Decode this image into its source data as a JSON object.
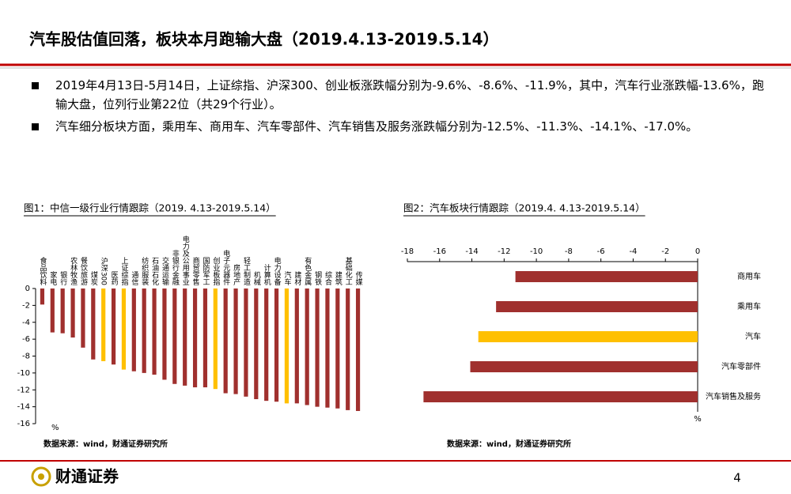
{
  "header": {
    "title": "汽车股估值回落，板块本月跑输大盘（2019.4.13-2019.5.14）"
  },
  "bullets": [
    "2019年4月13日-5月14日，上证综指、沪深300、创业板涨跌幅分别为-9.6%、-8.6%、-11.9%，其中，汽车行业涨跌幅-13.6%，跑输大盘，位列行业第22位（共29个行业）。",
    "汽车细分板块方面，乘用车、商用车、汽车零部件、汽车销售及服务涨跌幅分别为-12.5%、-11.3%、-14.1%、-17.0%。"
  ],
  "chart_data": [
    {
      "type": "bar",
      "title": "图1：中信一级行业行情跟踪（2019. 4.13-2019.5.14）",
      "categories": [
        "食品饮料",
        "家电",
        "银行",
        "农林牧渔",
        "餐饮旅游",
        "煤炭",
        "沪深300",
        "医药",
        "上证综指",
        "通信",
        "纺织服装",
        "石油石化",
        "交通运输",
        "非银行金融",
        "电力及公用事业",
        "商贸零售",
        "国防军工",
        "创业板指",
        "电子元器件",
        "房地产",
        "轻工制造",
        "机械",
        "计算机",
        "电力设备",
        "汽车",
        "建材",
        "有色金属",
        "钢铁",
        "综合",
        "建筑",
        "基础化工",
        "传媒"
      ],
      "values": [
        -1.9,
        -5.2,
        -5.3,
        -5.8,
        -7.0,
        -8.4,
        -8.6,
        -9.0,
        -9.6,
        -9.8,
        -10.0,
        -10.2,
        -10.8,
        -11.3,
        -11.5,
        -11.7,
        -11.7,
        -11.9,
        -12.4,
        -12.5,
        -12.8,
        -13.1,
        -13.3,
        -13.4,
        -13.6,
        -13.6,
        -13.8,
        -14.0,
        -14.1,
        -14.2,
        -14.4,
        -14.5
      ],
      "colors": [
        "#a0302e",
        "#a0302e",
        "#a0302e",
        "#a0302e",
        "#a0302e",
        "#a0302e",
        "#ffc000",
        "#a0302e",
        "#ffc000",
        "#a0302e",
        "#a0302e",
        "#a0302e",
        "#a0302e",
        "#a0302e",
        "#a0302e",
        "#a0302e",
        "#a0302e",
        "#ffc000",
        "#a0302e",
        "#a0302e",
        "#a0302e",
        "#a0302e",
        "#a0302e",
        "#a0302e",
        "#ffc000",
        "#a0302e",
        "#a0302e",
        "#a0302e",
        "#a0302e",
        "#a0302e",
        "#a0302e",
        "#a0302e"
      ],
      "ylim": [
        -16,
        0
      ],
      "yticks": [
        0,
        -2,
        -4,
        -6,
        -8,
        -10,
        -12,
        -14,
        -16
      ],
      "unit": "%",
      "source": "数据来源：wind，财通证券研究所"
    },
    {
      "type": "barh",
      "title": "图2：汽车板块行情跟踪（2019.4. 4.13-2019.5.14）",
      "categories": [
        "商用车",
        "乘用车",
        "汽车",
        "汽车零部件",
        "汽车销售及服务"
      ],
      "values": [
        -11.3,
        -12.5,
        -13.6,
        -14.1,
        -17.0
      ],
      "colors": [
        "#a0302e",
        "#a0302e",
        "#ffc000",
        "#a0302e",
        "#a0302e"
      ],
      "xlim": [
        -18,
        0
      ],
      "xticks": [
        -18,
        -16,
        -14,
        -12,
        -10,
        -8,
        -6,
        -4,
        -2,
        0
      ],
      "unit": "%",
      "source": "数据来源：wind，财通证券研究所"
    }
  ],
  "footer": {
    "logo": "财通证券",
    "page": "4"
  }
}
